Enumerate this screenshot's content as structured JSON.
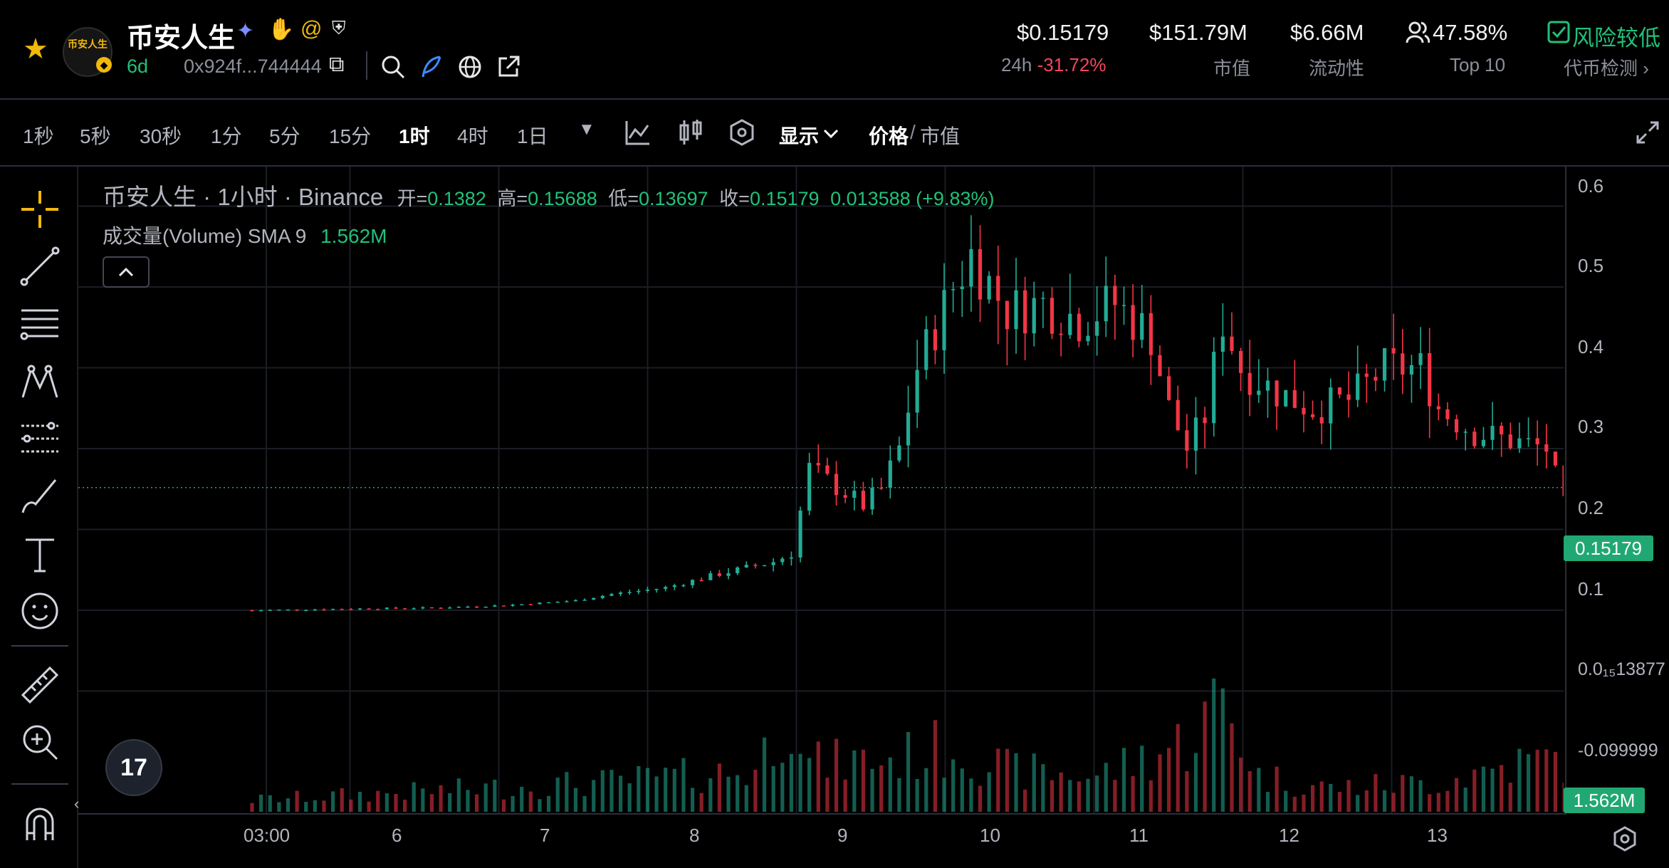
{
  "header": {
    "token_name": "币安人生",
    "logo_text": "币安人生",
    "age": "6d",
    "address": "0x924f...744444",
    "stats": [
      {
        "value": "$0.15179",
        "label_prefix": "24h",
        "label": "-31.72%"
      },
      {
        "value": "$151.79M",
        "label": "市值"
      },
      {
        "value": "$6.66M",
        "label": "流动性"
      },
      {
        "value": "47.58%",
        "label": "Top 10"
      },
      {
        "value": "风险较低",
        "label": "代币检测 ›"
      }
    ]
  },
  "toolbar": {
    "timeframes": [
      "1秒",
      "5秒",
      "30秒",
      "1分",
      "5分",
      "15分",
      "1时",
      "4时",
      "1日"
    ],
    "active_timeframe": "1时",
    "display_label": "显示",
    "price_label": "价格",
    "mcap_label": "市值"
  },
  "legend": {
    "symbol": "币安人生",
    "interval": "1小时",
    "exchange": "Binance",
    "open_label": "开=",
    "open": "0.1382",
    "high_label": "高=",
    "high": "0.15688",
    "low_label": "低=",
    "low": "0.13697",
    "close_label": "收=",
    "close": "0.15179",
    "change": "0.013588 (+9.83%)",
    "volume_label": "成交量(Volume)",
    "volume_sma": "SMA 9",
    "volume_value": "1.562M"
  },
  "price_axis": {
    "ticks": [
      "0.6",
      "0.5",
      "0.4",
      "0.3",
      "0.2",
      "0.1",
      "0.0₁₅13877",
      "-0.099999"
    ],
    "current_price": "0.15179",
    "current_volume": "1.562M"
  },
  "time_axis": {
    "ticks": [
      "03:00",
      "6",
      "7",
      "8",
      "9",
      "10",
      "11",
      "12",
      "13"
    ]
  },
  "colors": {
    "up": "#22ab94",
    "down": "#f23645",
    "accent": "#f0b90b",
    "current_price": "#21a872"
  },
  "chart_data": {
    "type": "candlestick",
    "interval": "1小时",
    "x_ticks": [
      "03:00",
      "6",
      "7",
      "8",
      "9",
      "10",
      "11",
      "12",
      "13"
    ],
    "ylim": [
      -0.12,
      0.62
    ],
    "current_price": 0.15179,
    "last_candle": {
      "open": 0.1382,
      "high": 0.15688,
      "low": 0.13697,
      "close": 0.15179
    },
    "close_path": [
      [
        0.0,
        0.0
      ],
      [
        0.6,
        0.002
      ],
      [
        1.0,
        0.003
      ],
      [
        1.4,
        0.006
      ],
      [
        1.8,
        0.012
      ],
      [
        2.0,
        0.02
      ],
      [
        2.3,
        0.028
      ],
      [
        2.6,
        0.045
      ],
      [
        2.9,
        0.06
      ],
      [
        3.0,
        0.07
      ],
      [
        3.1,
        0.175
      ],
      [
        3.2,
        0.16
      ],
      [
        3.4,
        0.13
      ],
      [
        3.5,
        0.15
      ],
      [
        3.6,
        0.2
      ],
      [
        3.7,
        0.3
      ],
      [
        3.8,
        0.35
      ],
      [
        3.9,
        0.4
      ],
      [
        4.0,
        0.44
      ],
      [
        4.2,
        0.37
      ],
      [
        4.4,
        0.38
      ],
      [
        4.6,
        0.36
      ],
      [
        4.8,
        0.38
      ],
      [
        5.0,
        0.34
      ],
      [
        5.1,
        0.25
      ],
      [
        5.2,
        0.2
      ],
      [
        5.3,
        0.24
      ],
      [
        5.4,
        0.36
      ],
      [
        5.5,
        0.3
      ],
      [
        5.7,
        0.27
      ],
      [
        5.9,
        0.25
      ],
      [
        6.1,
        0.26
      ],
      [
        6.3,
        0.3
      ],
      [
        6.5,
        0.3
      ],
      [
        6.6,
        0.25
      ],
      [
        6.8,
        0.22
      ],
      [
        7.0,
        0.21
      ],
      [
        7.2,
        0.2
      ],
      [
        7.3,
        0.13
      ],
      [
        7.4,
        0.13
      ],
      [
        7.6,
        0.13
      ],
      [
        7.8,
        0.14
      ],
      [
        8.0,
        0.152
      ]
    ],
    "volume_profile": [
      [
        0.0,
        0.1
      ],
      [
        2.0,
        0.25
      ],
      [
        2.8,
        0.35
      ],
      [
        3.0,
        0.95
      ],
      [
        3.1,
        0.4
      ],
      [
        3.6,
        0.45
      ],
      [
        3.9,
        0.55
      ],
      [
        4.2,
        0.35
      ],
      [
        4.7,
        0.3
      ],
      [
        5.2,
        0.6
      ],
      [
        5.4,
        0.95
      ],
      [
        5.6,
        0.3
      ],
      [
        6.0,
        0.2
      ],
      [
        6.6,
        0.25
      ],
      [
        7.0,
        0.4
      ],
      [
        7.3,
        0.45
      ],
      [
        7.6,
        0.15
      ],
      [
        8.0,
        0.12
      ]
    ]
  }
}
